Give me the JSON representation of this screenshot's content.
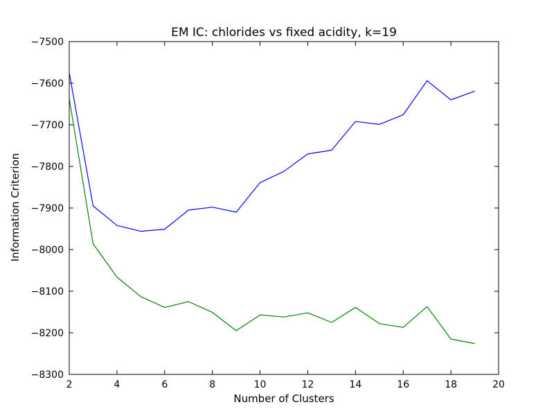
{
  "chart_data": {
    "type": "line",
    "title": "EM IC: chlorides vs fixed acidity, k=19",
    "xlabel": "Number of Clusters",
    "ylabel": "Information Criterion",
    "xlim": [
      2,
      20
    ],
    "ylim": [
      -8300,
      -7500
    ],
    "xticks": [
      2,
      4,
      6,
      8,
      10,
      12,
      14,
      16,
      18,
      20
    ],
    "yticks": [
      -8300,
      -8200,
      -8100,
      -8000,
      -7900,
      -7800,
      -7700,
      -7600,
      -7500
    ],
    "xtick_labels": [
      "2",
      "4",
      "6",
      "8",
      "10",
      "12",
      "14",
      "16",
      "18",
      "20"
    ],
    "ytick_labels": [
      "−8300",
      "−8200",
      "−8100",
      "−8000",
      "−7900",
      "−7800",
      "−7700",
      "−7600",
      "−7500"
    ],
    "grid": false,
    "x": [
      2,
      3,
      4,
      5,
      6,
      7,
      8,
      9,
      10,
      11,
      12,
      13,
      14,
      15,
      16,
      17,
      18,
      19
    ],
    "series": [
      {
        "color": "#0000ff",
        "values": [
          -7575,
          -7895,
          -7942,
          -7956,
          -7951,
          -7905,
          -7898,
          -7910,
          -7839,
          -7812,
          -7770,
          -7761,
          -7692,
          -7699,
          -7676,
          -7594,
          -7640,
          -7619
        ]
      },
      {
        "color": "#008000",
        "values": [
          -7637,
          -7986,
          -8066,
          -8113,
          -8139,
          -8125,
          -8151,
          -8195,
          -8157,
          -8162,
          -8152,
          -8175,
          -8139,
          -8178,
          -8187,
          -8137,
          -8215,
          -8226
        ]
      }
    ]
  }
}
